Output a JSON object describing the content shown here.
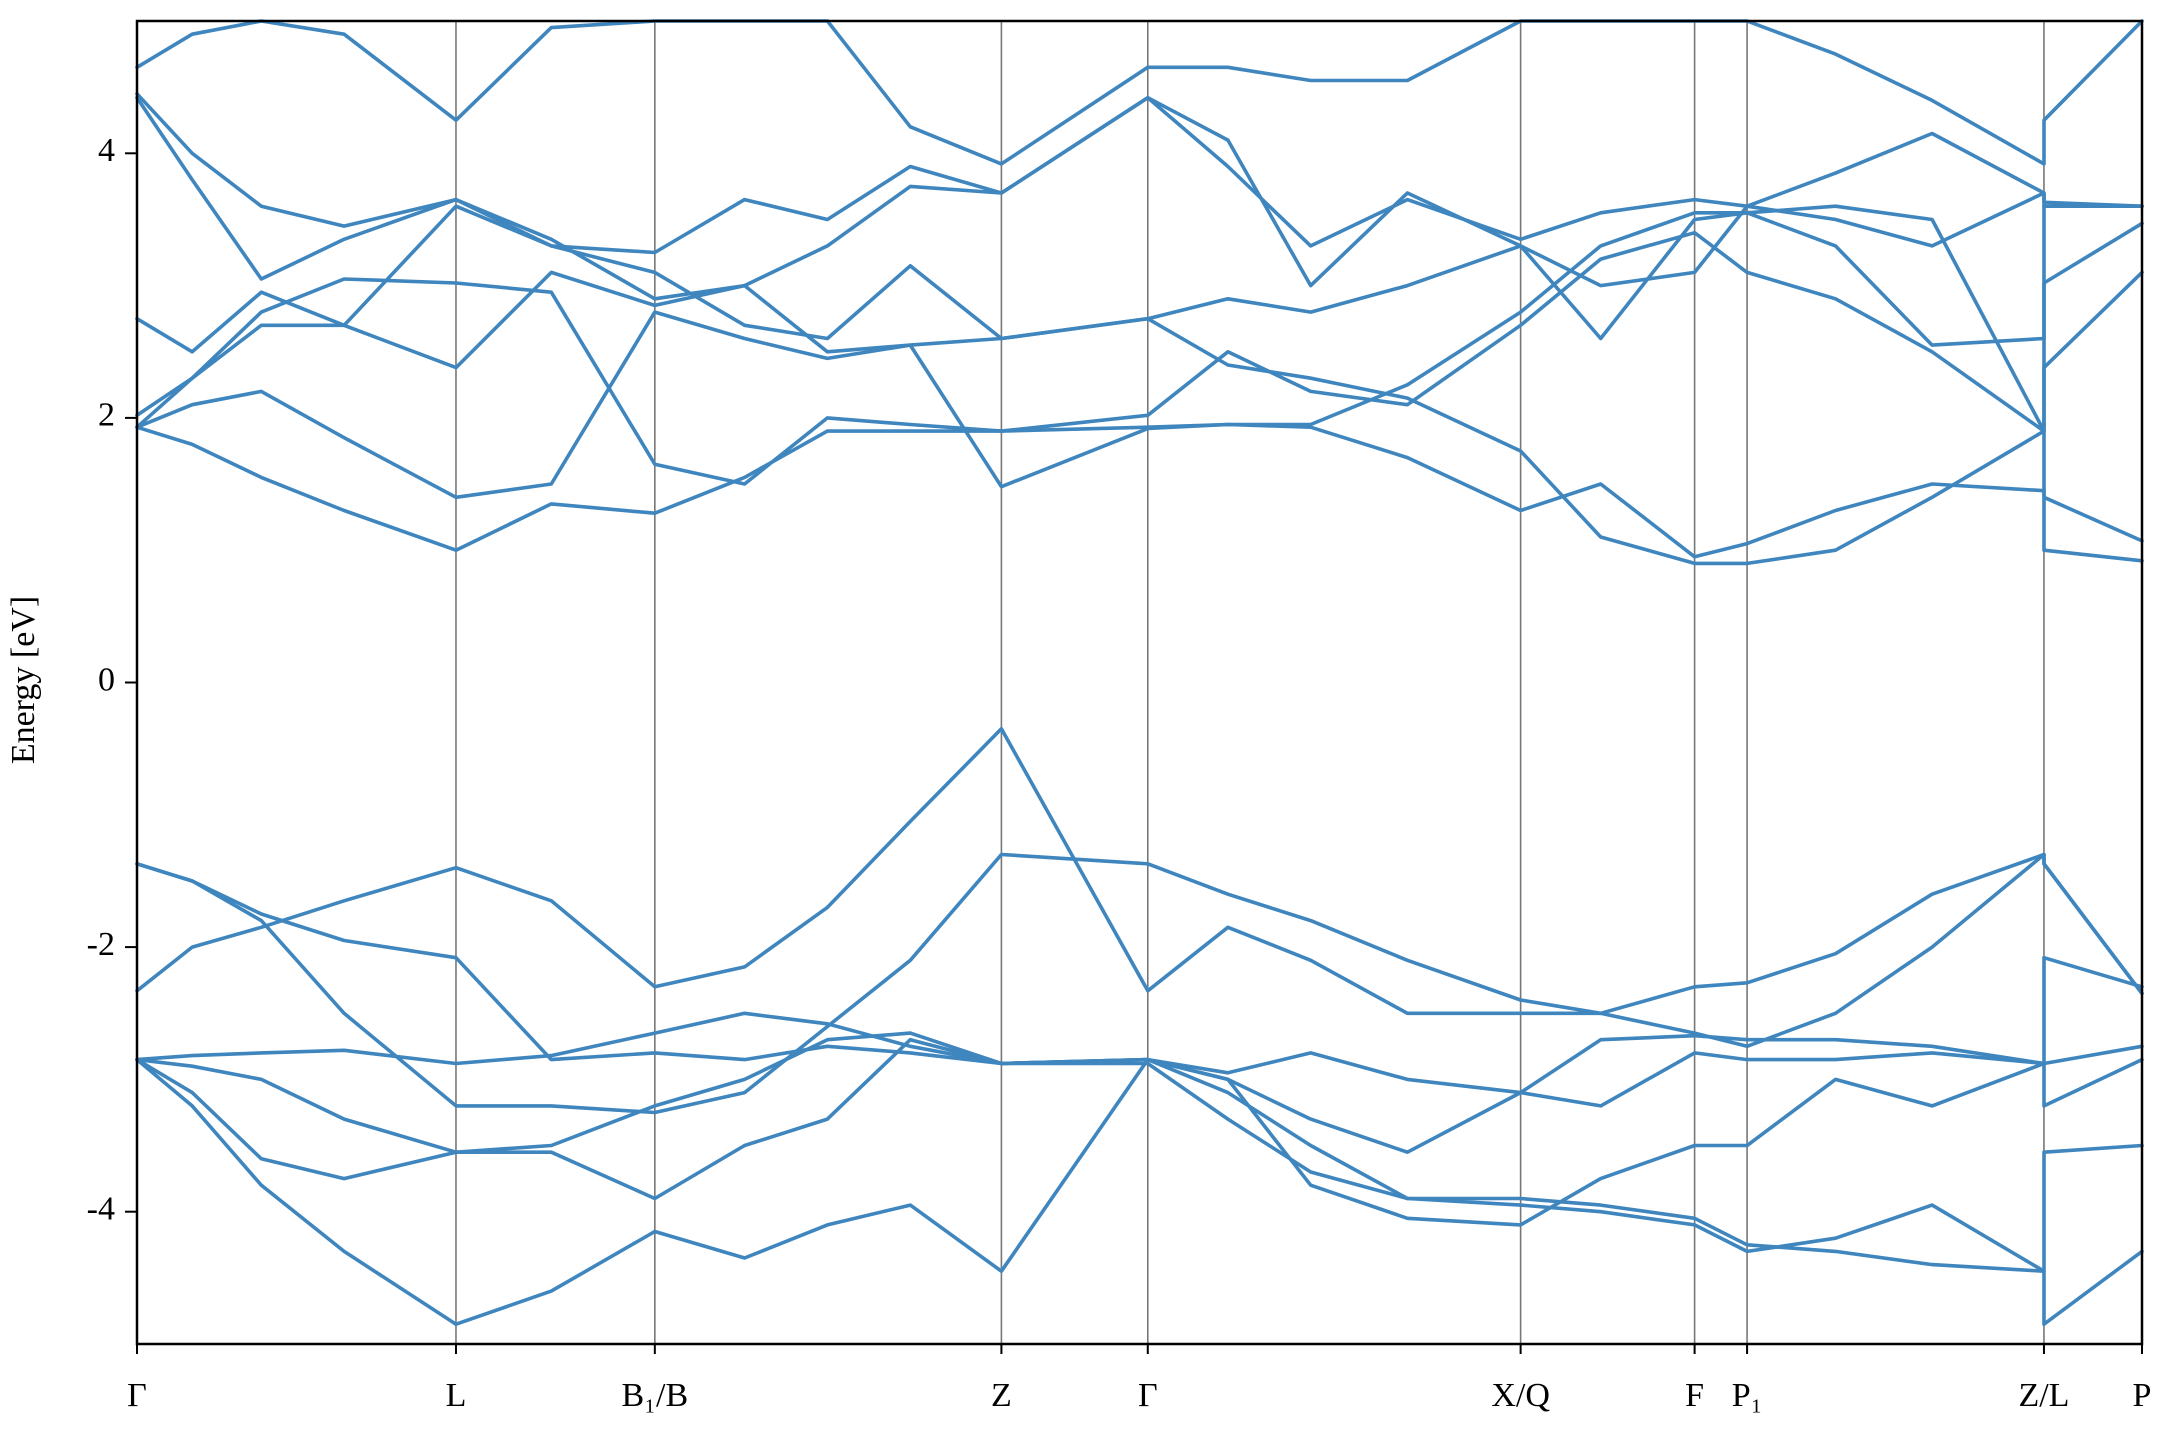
{
  "chart_data": {
    "type": "line",
    "ylabel": "Energy [eV]",
    "x": [
      0,
      40,
      90,
      150,
      231,
      300,
      375,
      440,
      500,
      560,
      626,
      732,
      790,
      850,
      920,
      1002,
      1060,
      1128,
      1166,
      1230,
      1300,
      1381,
      1381,
      1452
    ],
    "xlim": [
      0,
      1452
    ],
    "xticks": [
      {
        "value": 0,
        "label": "Γ"
      },
      {
        "value": 231,
        "label": "L"
      },
      {
        "value": 375,
        "label": "B₁/B"
      },
      {
        "value": 626,
        "label": "Z"
      },
      {
        "value": 732,
        "label": "Γ"
      },
      {
        "value": 1002,
        "label": "X/Q"
      },
      {
        "value": 1128,
        "label": "F"
      },
      {
        "value": 1166,
        "label": "P₁"
      },
      {
        "value": 1381,
        "label": "Z/L"
      },
      {
        "value": 1452,
        "label": "P"
      }
    ],
    "ylim": [
      -5,
      5
    ],
    "yticks": [
      -4,
      -2,
      0,
      2,
      4
    ],
    "grid": true,
    "series": [
      {
        "color": "#3f86bf",
        "values": [
          -2.33,
          -2.0,
          -1.85,
          -1.65,
          -1.4,
          -1.65,
          -2.3,
          -2.15,
          -1.7,
          -1.05,
          -0.35,
          -2.33,
          -1.85,
          -2.1,
          -2.5,
          -2.5,
          -2.5,
          -2.3,
          -2.27,
          -2.05,
          -1.6,
          -1.3,
          -1.37,
          -2.35
        ]
      },
      {
        "color": "#3f86bf",
        "values": [
          -1.37,
          -1.5,
          -1.75,
          -1.95,
          -2.08,
          -2.85,
          -2.8,
          -2.85,
          -2.75,
          -2.8,
          -2.88,
          -2.85,
          -3.0,
          -3.3,
          -3.55,
          -3.1,
          -3.2,
          -2.8,
          -2.85,
          -2.85,
          -2.8,
          -2.88,
          -2.08,
          -2.3
        ]
      },
      {
        "color": "#3f86bf",
        "values": [
          -2.85,
          -2.82,
          -2.8,
          -2.78,
          -2.88,
          -2.82,
          -2.65,
          -2.5,
          -2.58,
          -2.75,
          -2.88,
          -2.85,
          -2.95,
          -2.8,
          -3.0,
          -3.1,
          -2.7,
          -2.67,
          -2.7,
          -2.7,
          -2.75,
          -2.88,
          -2.88,
          -2.75
        ]
      },
      {
        "color": "#3f86bf",
        "values": [
          -1.37,
          -1.5,
          -1.8,
          -2.5,
          -3.2,
          -3.2,
          -3.25,
          -3.1,
          -2.6,
          -2.1,
          -1.3,
          -1.37,
          -1.6,
          -1.8,
          -2.1,
          -2.4,
          -2.5,
          -2.65,
          -2.75,
          -2.5,
          -2.0,
          -1.3,
          -1.37,
          -2.35
        ]
      },
      {
        "color": "#3f86bf",
        "values": [
          -2.85,
          -3.1,
          -3.6,
          -3.75,
          -3.55,
          -3.55,
          -3.9,
          -3.5,
          -3.3,
          -2.7,
          -2.88,
          -2.88,
          -3.3,
          -3.7,
          -3.9,
          -3.9,
          -3.95,
          -4.05,
          -4.25,
          -4.3,
          -4.4,
          -4.45,
          -3.55,
          -3.5
        ]
      },
      {
        "color": "#3f86bf",
        "values": [
          -2.85,
          -3.2,
          -3.8,
          -4.3,
          -4.85,
          -4.6,
          -4.15,
          -4.35,
          -4.1,
          -3.95,
          -4.45,
          -2.85,
          -3.0,
          -3.8,
          -4.05,
          -4.1,
          -3.75,
          -3.5,
          -3.5,
          -3.0,
          -3.2,
          -2.88,
          -3.2,
          -2.85
        ]
      },
      {
        "color": "#3f86bf",
        "values": [
          -2.85,
          -2.9,
          -3.0,
          -3.3,
          -3.55,
          -3.5,
          -3.2,
          -3.0,
          -2.7,
          -2.65,
          -2.88,
          -2.85,
          -3.1,
          -3.5,
          -3.9,
          -3.95,
          -4.0,
          -4.1,
          -4.3,
          -4.2,
          -3.95,
          -4.45,
          -4.85,
          -4.3
        ]
      },
      {
        "color": "#3f86bf",
        "values": [
          1.93,
          1.8,
          1.55,
          1.3,
          1.0,
          1.35,
          1.28,
          1.55,
          1.9,
          1.9,
          1.9,
          1.93,
          1.95,
          1.93,
          1.7,
          1.3,
          1.5,
          0.95,
          1.05,
          1.3,
          1.5,
          1.45,
          1.0,
          0.92
        ]
      },
      {
        "color": "#3f86bf",
        "values": [
          1.93,
          2.1,
          2.2,
          1.85,
          1.4,
          1.5,
          2.8,
          2.6,
          2.45,
          2.55,
          2.6,
          2.75,
          2.4,
          2.3,
          2.15,
          1.75,
          1.1,
          0.9,
          0.9,
          1.0,
          1.4,
          1.9,
          1.4,
          1.07
        ]
      },
      {
        "color": "#3f86bf",
        "values": [
          2.02,
          2.3,
          2.8,
          3.05,
          3.02,
          2.95,
          1.65,
          1.5,
          2.0,
          1.95,
          1.9,
          2.02,
          2.5,
          2.2,
          2.1,
          2.7,
          3.2,
          3.4,
          3.1,
          2.9,
          2.5,
          1.9,
          2.38,
          3.1
        ]
      },
      {
        "color": "#3f86bf",
        "values": [
          2.75,
          2.5,
          2.95,
          2.7,
          2.38,
          3.1,
          2.85,
          3.0,
          2.5,
          2.55,
          1.48,
          1.92,
          1.95,
          1.95,
          2.25,
          2.8,
          3.3,
          3.55,
          3.55,
          3.3,
          2.55,
          2.6,
          3.02,
          3.47
        ]
      },
      {
        "color": "#3f86bf",
        "values": [
          1.93,
          2.3,
          2.7,
          2.7,
          3.6,
          3.3,
          3.25,
          3.65,
          3.5,
          3.9,
          3.7,
          4.42,
          3.9,
          3.3,
          3.65,
          3.35,
          3.55,
          3.65,
          3.6,
          3.85,
          4.15,
          3.7,
          3.63,
          3.6
        ]
      },
      {
        "color": "#3f86bf",
        "values": [
          4.42,
          3.8,
          3.05,
          3.35,
          3.65,
          3.35,
          2.9,
          3.0,
          3.3,
          3.75,
          3.7,
          4.42,
          4.1,
          3.0,
          3.7,
          3.3,
          2.6,
          3.5,
          3.55,
          3.6,
          3.5,
          1.9,
          3.6,
          3.6
        ]
      },
      {
        "color": "#3f86bf",
        "values": [
          4.45,
          4.0,
          3.6,
          3.45,
          3.65,
          3.3,
          3.1,
          2.7,
          2.6,
          3.15,
          2.6,
          2.75,
          2.9,
          2.8,
          3.0,
          3.3,
          3.0,
          3.1,
          3.6,
          3.5,
          3.3,
          3.7,
          3.6,
          3.6
        ]
      },
      {
        "color": "#3f86bf",
        "values": [
          4.65,
          4.9,
          5.0,
          4.9,
          4.25,
          4.95,
          5.0,
          5.0,
          5.0,
          4.2,
          3.92,
          4.65,
          4.65,
          4.55,
          4.55,
          5.0,
          5.0,
          5.0,
          5.0,
          4.75,
          4.4,
          3.92,
          4.25,
          5.0
        ]
      }
    ]
  }
}
